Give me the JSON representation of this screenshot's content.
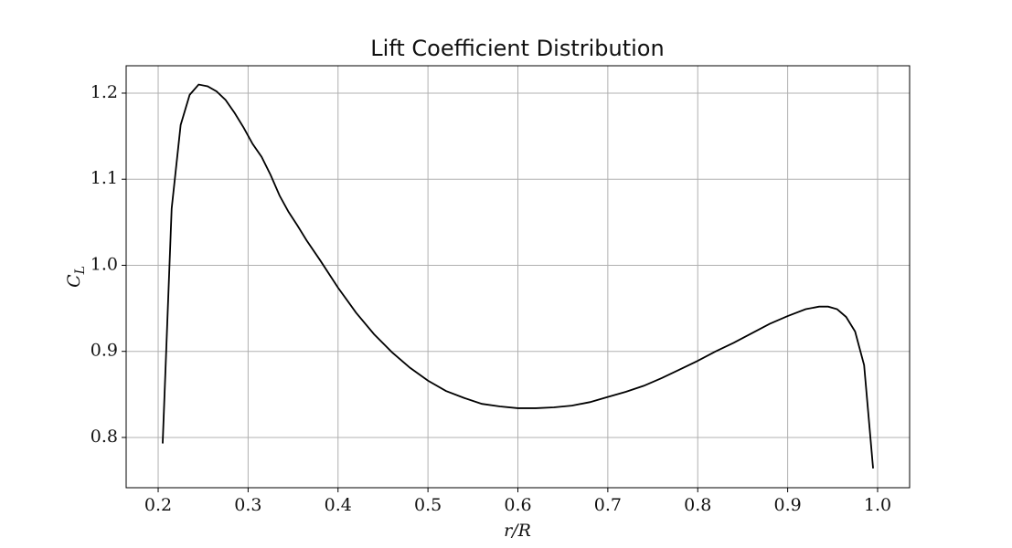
{
  "chart_data": {
    "type": "line",
    "title": "Lift Coefficient Distribution",
    "xlabel": "r/R",
    "ylabel": {
      "text": "C",
      "subscript": "L"
    },
    "x": [
      0.205,
      0.215,
      0.225,
      0.235,
      0.245,
      0.255,
      0.265,
      0.275,
      0.285,
      0.295,
      0.305,
      0.315,
      0.325,
      0.335,
      0.345,
      0.355,
      0.365,
      0.38,
      0.4,
      0.42,
      0.44,
      0.46,
      0.48,
      0.5,
      0.52,
      0.54,
      0.56,
      0.58,
      0.6,
      0.62,
      0.64,
      0.66,
      0.68,
      0.7,
      0.72,
      0.74,
      0.76,
      0.78,
      0.8,
      0.82,
      0.84,
      0.86,
      0.88,
      0.9,
      0.92,
      0.935,
      0.945,
      0.955,
      0.965,
      0.975,
      0.985,
      0.995
    ],
    "series": [
      {
        "color": "#000000",
        "values": [
          0.793,
          1.066,
          1.163,
          1.198,
          1.21,
          1.208,
          1.202,
          1.192,
          1.177,
          1.16,
          1.141,
          1.126,
          1.105,
          1.081,
          1.062,
          1.046,
          1.029,
          1.006,
          0.974,
          0.945,
          0.92,
          0.899,
          0.881,
          0.866,
          0.854,
          0.846,
          0.839,
          0.836,
          0.834,
          0.834,
          0.835,
          0.837,
          0.841,
          0.847,
          0.853,
          0.86,
          0.869,
          0.879,
          0.889,
          0.9,
          0.91,
          0.921,
          0.932,
          0.941,
          0.949,
          0.952,
          0.952,
          0.949,
          0.94,
          0.923,
          0.884,
          0.764
        ]
      }
    ],
    "xlim": [
      0.1644,
      1.0356
    ],
    "ylim": [
      0.7416,
      1.2318
    ],
    "xticks": [
      0.2,
      0.3,
      0.4,
      0.5,
      0.6,
      0.7,
      0.8,
      0.9,
      {
        "value": 1,
        "label": "1.0"
      }
    ],
    "yticks": [
      0.8,
      0.9,
      {
        "value": 1,
        "label": "1.0"
      },
      1.1,
      1.2
    ],
    "grid": true
  }
}
